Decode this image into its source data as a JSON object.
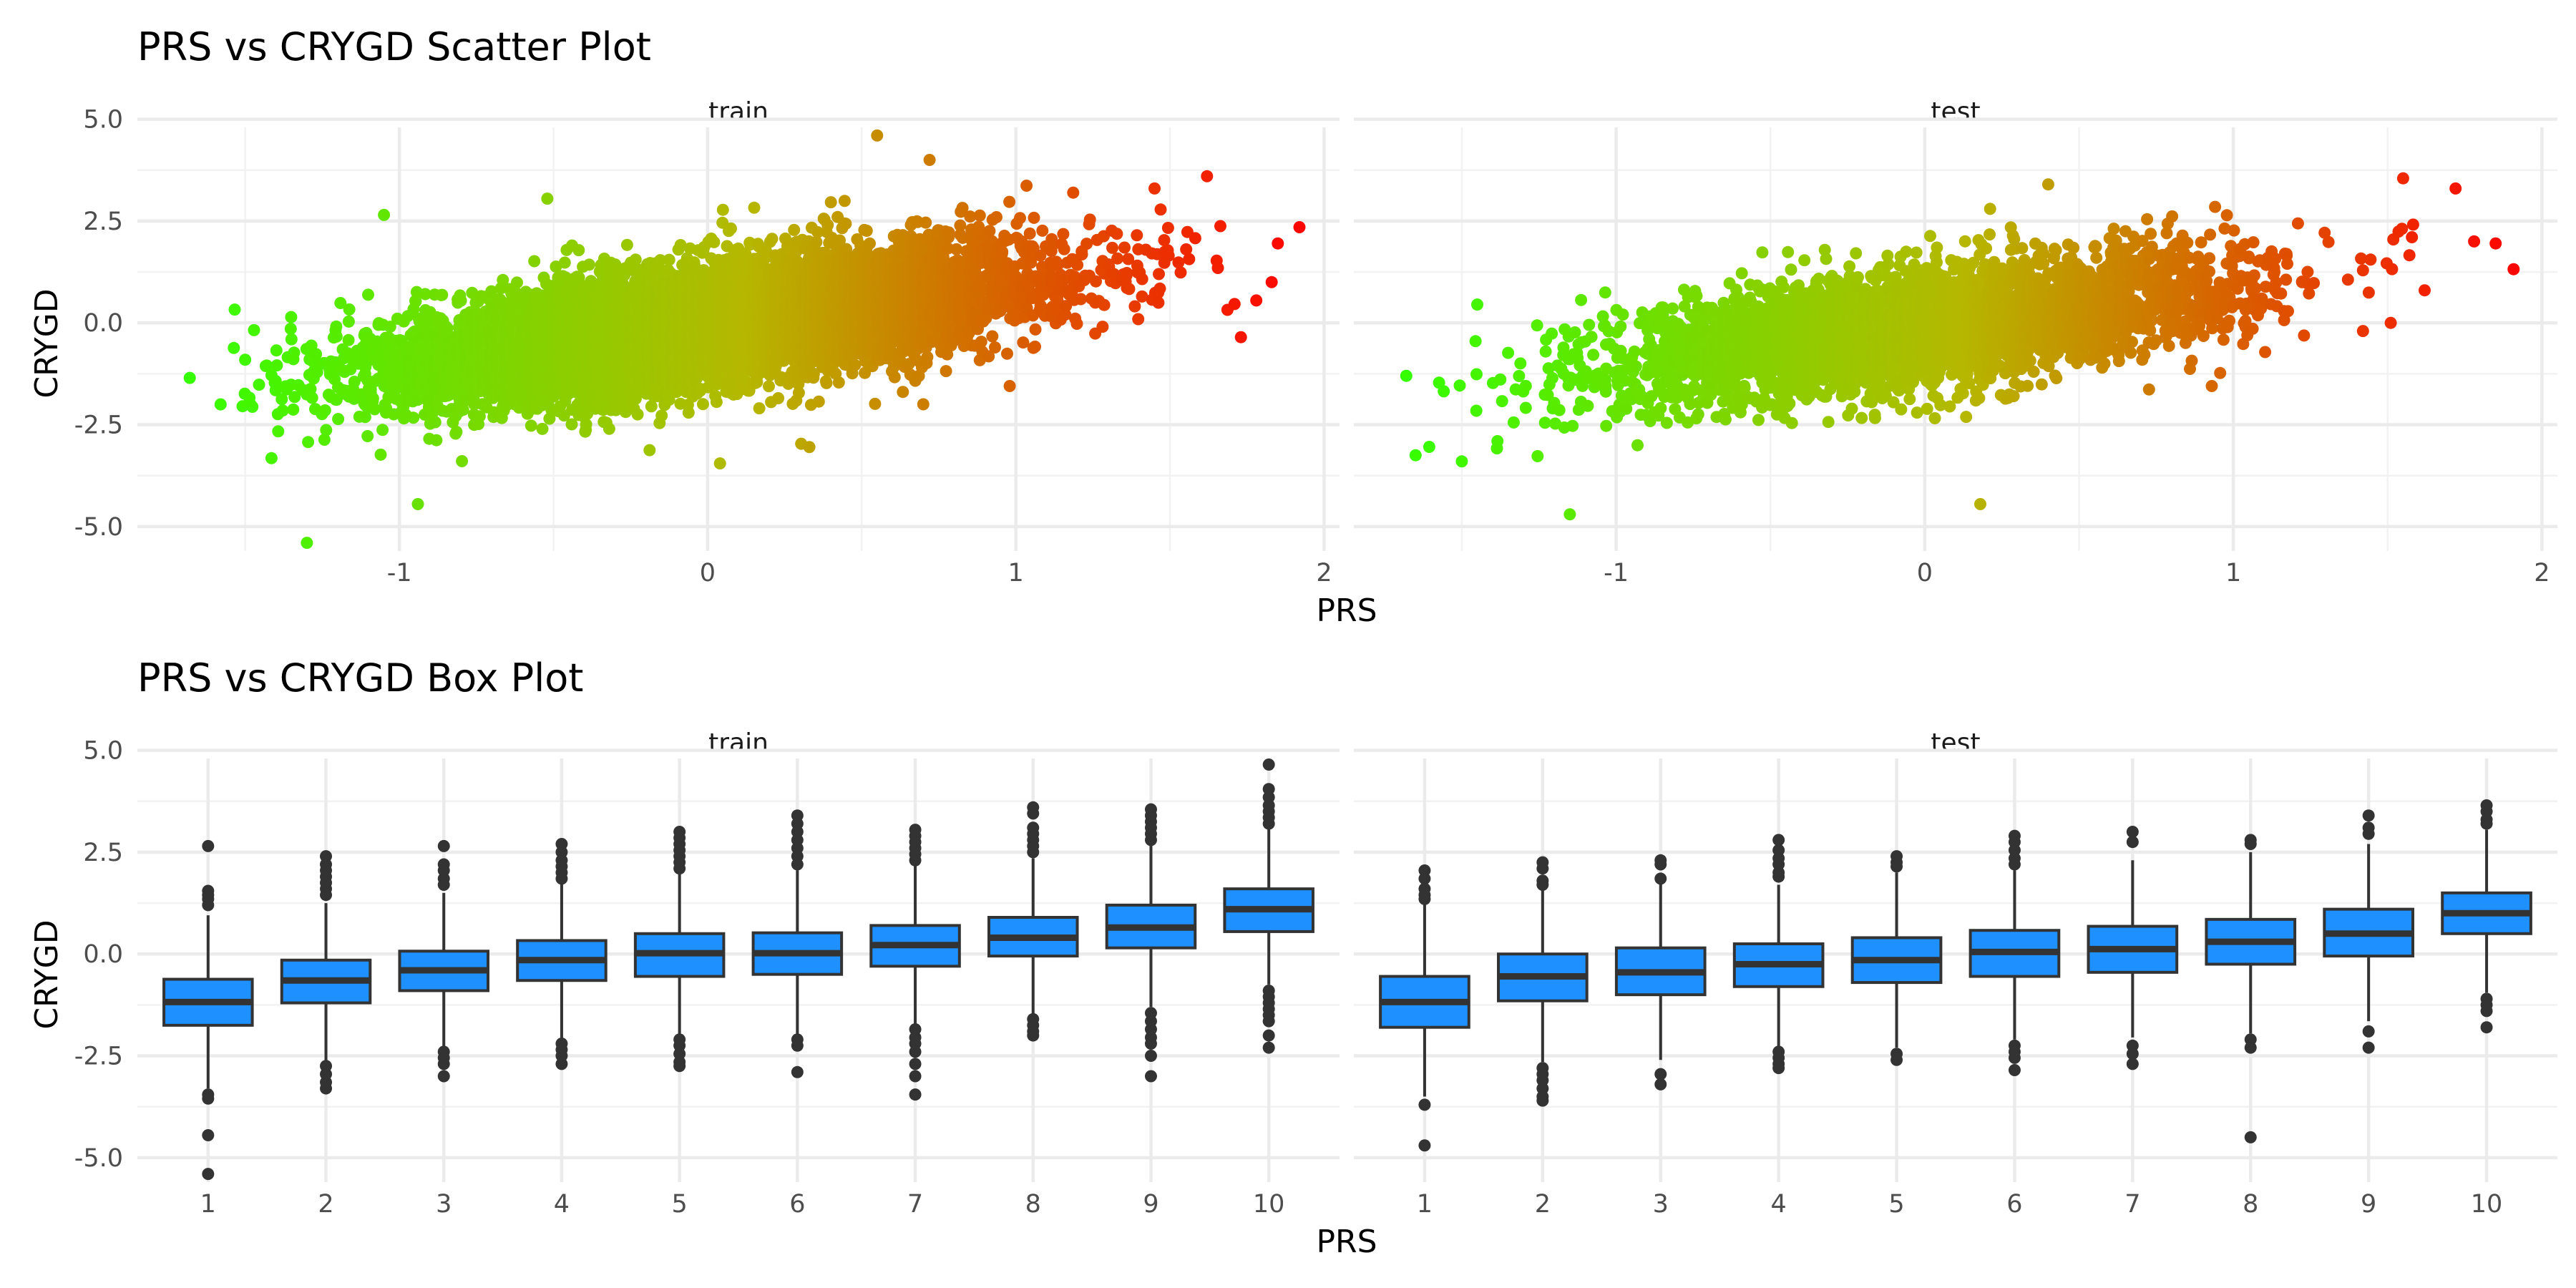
{
  "chart_data": [
    {
      "type": "scatter",
      "title": "PRS vs CRYGD Scatter Plot",
      "xlabel": "PRS",
      "ylabel": "CRYGD",
      "color_scale": {
        "low": "#33ff00",
        "mid": "#b5b800",
        "high": "#ff0000",
        "mapped_to": "PRS"
      },
      "panels": [
        {
          "name": "train",
          "xlim": [
            -1.85,
            2.05
          ],
          "ylim": [
            -5.6,
            4.8
          ],
          "x_ticks": [
            -1,
            0,
            1,
            2
          ],
          "x_tick_labels": [
            "-1",
            "0",
            "1",
            "2"
          ],
          "y_ticks": [
            -5,
            -2.5,
            0,
            2.5,
            5
          ],
          "y_tick_labels": [
            "-5.0",
            "-2.5",
            "0.0",
            "2.5",
            "5.0"
          ],
          "trend": {
            "slope": 1.02,
            "intercept": -0.05,
            "spread_sd": 0.72,
            "n_approx": 9000,
            "x_mean": 0.0,
            "x_sd": 0.5
          },
          "points": [
            {
              "x": -1.68,
              "y": -1.35
            },
            {
              "x": -1.3,
              "y": -5.4
            },
            {
              "x": -0.94,
              "y": -4.45
            },
            {
              "x": -1.05,
              "y": 2.65
            },
            {
              "x": 0.55,
              "y": 4.6
            },
            {
              "x": 0.72,
              "y": 4.0
            },
            {
              "x": 1.92,
              "y": 2.35
            },
            {
              "x": 1.83,
              "y": 1.0
            },
            {
              "x": 1.78,
              "y": 0.55
            },
            {
              "x": 1.73,
              "y": -0.35
            },
            {
              "x": 0.33,
              "y": -3.05
            },
            {
              "x": 0.04,
              "y": -3.45
            },
            {
              "x": 0.98,
              "y": -1.55
            },
            {
              "x": 1.62,
              "y": 3.6
            },
            {
              "x": 1.45,
              "y": 3.3
            },
            {
              "x": 1.85,
              "y": 1.95
            },
            {
              "x": -0.52,
              "y": 3.05
            },
            {
              "x": -1.58,
              "y": -2.0
            }
          ]
        },
        {
          "name": "test",
          "xlim": [
            -1.85,
            2.05
          ],
          "ylim": [
            -5.6,
            4.8
          ],
          "x_ticks": [
            -1,
            0,
            1,
            2
          ],
          "x_tick_labels": [
            "-1",
            "0",
            "1",
            "2"
          ],
          "y_ticks": [
            -5,
            -2.5,
            0,
            2.5,
            5
          ],
          "y_tick_labels": [
            "-5.0",
            "-2.5",
            "0.0",
            "2.5",
            "5.0"
          ],
          "trend": {
            "slope": 1.0,
            "intercept": -0.1,
            "spread_sd": 0.72,
            "n_approx": 4000,
            "x_mean": 0.0,
            "x_sd": 0.5
          },
          "points": [
            {
              "x": -1.68,
              "y": -1.3
            },
            {
              "x": -1.65,
              "y": -3.25
            },
            {
              "x": -1.15,
              "y": -4.7
            },
            {
              "x": 0.18,
              "y": -4.45
            },
            {
              "x": 1.78,
              "y": 2.0
            },
            {
              "x": 1.85,
              "y": 1.95
            },
            {
              "x": 1.72,
              "y": 3.3
            },
            {
              "x": 1.55,
              "y": 3.55
            },
            {
              "x": 1.62,
              "y": 0.8
            },
            {
              "x": 1.51,
              "y": 0.0
            },
            {
              "x": 1.42,
              "y": -0.2
            },
            {
              "x": 0.93,
              "y": -1.55
            },
            {
              "x": -1.5,
              "y": -3.4
            },
            {
              "x": -1.45,
              "y": 0.45
            },
            {
              "x": 0.4,
              "y": 3.4
            }
          ]
        }
      ]
    },
    {
      "type": "box",
      "title": "PRS vs CRYGD Box Plot",
      "xlabel": "PRS",
      "ylabel": "CRYGD",
      "fill": "#1e90ff",
      "categories": [
        "1",
        "2",
        "3",
        "4",
        "5",
        "6",
        "7",
        "8",
        "9",
        "10"
      ],
      "ylim": [
        -5.6,
        4.8
      ],
      "y_ticks": [
        -5,
        -2.5,
        0,
        2.5,
        5
      ],
      "y_tick_labels": [
        "-5.0",
        "-2.5",
        "0.0",
        "2.5",
        "5.0"
      ],
      "panels": [
        {
          "name": "train",
          "boxes": [
            {
              "q1": -1.75,
              "median": -1.18,
              "q3": -0.62,
              "lower": -3.3,
              "upper": 0.95,
              "outliers": [
                2.65,
                1.55,
                1.45,
                1.35,
                1.2,
                -3.45,
                -3.55,
                -4.45,
                -5.4
              ]
            },
            {
              "q1": -1.2,
              "median": -0.65,
              "q3": -0.15,
              "lower": -2.7,
              "upper": 1.25,
              "outliers": [
                2.4,
                2.2,
                2.05,
                1.9,
                1.75,
                1.6,
                1.45,
                -2.75,
                -2.95,
                -3.15,
                -3.3
              ]
            },
            {
              "q1": -0.9,
              "median": -0.4,
              "q3": 0.07,
              "lower": -2.3,
              "upper": 1.5,
              "outliers": [
                2.65,
                2.2,
                2.05,
                1.85,
                1.7,
                -2.4,
                -2.55,
                -2.7,
                -3.0
              ]
            },
            {
              "q1": -0.65,
              "median": -0.15,
              "q3": 0.33,
              "lower": -2.1,
              "upper": 1.75,
              "outliers": [
                2.7,
                2.5,
                2.3,
                2.15,
                2.0,
                1.85,
                -2.2,
                -2.35,
                -2.5,
                -2.7
              ]
            },
            {
              "q1": -0.55,
              "median": 0.02,
              "q3": 0.5,
              "lower": -2.0,
              "upper": 2.0,
              "outliers": [
                3.0,
                2.85,
                2.7,
                2.55,
                2.4,
                2.25,
                2.1,
                -2.1,
                -2.25,
                -2.45,
                -2.65,
                -2.75
              ]
            },
            {
              "q1": -0.5,
              "median": 0.02,
              "q3": 0.52,
              "lower": -2.0,
              "upper": 2.05,
              "outliers": [
                3.4,
                3.2,
                3.0,
                2.8,
                2.6,
                2.4,
                2.2,
                -2.1,
                -2.25,
                -2.9
              ]
            },
            {
              "q1": -0.3,
              "median": 0.22,
              "q3": 0.7,
              "lower": -1.75,
              "upper": 2.2,
              "outliers": [
                3.05,
                2.9,
                2.75,
                2.6,
                2.45,
                2.3,
                -1.85,
                -2.05,
                -2.2,
                -2.4,
                -2.7,
                -3.0,
                -3.45
              ]
            },
            {
              "q1": -0.05,
              "median": 0.4,
              "q3": 0.9,
              "lower": -1.5,
              "upper": 2.35,
              "outliers": [
                3.6,
                3.45,
                3.1,
                2.95,
                2.8,
                2.65,
                2.5,
                -1.6,
                -1.75,
                -1.9,
                -2.0
              ]
            },
            {
              "q1": 0.15,
              "median": 0.65,
              "q3": 1.2,
              "lower": -1.3,
              "upper": 2.7,
              "outliers": [
                3.55,
                3.4,
                3.25,
                3.1,
                2.95,
                2.8,
                -1.45,
                -1.65,
                -1.85,
                -2.05,
                -2.2,
                -2.5,
                -3.0
              ]
            },
            {
              "q1": 0.55,
              "median": 1.1,
              "q3": 1.6,
              "lower": -0.75,
              "upper": 3.1,
              "outliers": [
                4.65,
                4.05,
                3.85,
                3.65,
                3.5,
                3.35,
                3.2,
                -0.9,
                -1.05,
                -1.2,
                -1.35,
                -1.5,
                -1.65,
                -2.0,
                -2.3
              ]
            }
          ]
        },
        {
          "name": "test",
          "boxes": [
            {
              "q1": -1.8,
              "median": -1.18,
              "q3": -0.55,
              "lower": -3.5,
              "upper": 1.25,
              "outliers": [
                2.05,
                1.85,
                1.6,
                1.45,
                1.35,
                -3.7,
                -4.7
              ]
            },
            {
              "q1": -1.15,
              "median": -0.55,
              "q3": 0.0,
              "lower": -2.65,
              "upper": 1.6,
              "outliers": [
                2.25,
                2.1,
                1.8,
                1.7,
                -2.8,
                -2.95,
                -3.1,
                -3.3,
                -3.5,
                -3.6
              ]
            },
            {
              "q1": -1.0,
              "median": -0.45,
              "q3": 0.15,
              "lower": -2.6,
              "upper": 1.75,
              "outliers": [
                2.3,
                2.2,
                1.85,
                -2.95,
                -3.2
              ]
            },
            {
              "q1": -0.8,
              "median": -0.25,
              "q3": 0.25,
              "lower": -2.3,
              "upper": 1.7,
              "outliers": [
                2.8,
                2.55,
                2.35,
                2.2,
                2.0,
                1.9,
                -2.4,
                -2.55,
                -2.7,
                -2.8
              ]
            },
            {
              "q1": -0.7,
              "median": -0.15,
              "q3": 0.4,
              "lower": -2.3,
              "upper": 2.0,
              "outliers": [
                2.4,
                2.25,
                2.15,
                -2.45,
                -2.6
              ]
            },
            {
              "q1": -0.55,
              "median": 0.05,
              "q3": 0.58,
              "lower": -2.1,
              "upper": 2.05,
              "outliers": [
                2.9,
                2.75,
                2.55,
                2.35,
                2.2,
                -2.25,
                -2.4,
                -2.55,
                -2.85
              ]
            },
            {
              "q1": -0.45,
              "median": 0.12,
              "q3": 0.68,
              "lower": -2.05,
              "upper": 2.3,
              "outliers": [
                3.0,
                2.75,
                -2.25,
                -2.45,
                -2.7
              ]
            },
            {
              "q1": -0.25,
              "median": 0.3,
              "q3": 0.85,
              "lower": -1.95,
              "upper": 2.5,
              "outliers": [
                2.8,
                2.7,
                -2.1,
                -2.3,
                -4.5
              ]
            },
            {
              "q1": -0.05,
              "median": 0.5,
              "q3": 1.1,
              "lower": -1.65,
              "upper": 2.7,
              "outliers": [
                3.4,
                3.1,
                2.95,
                -1.9,
                -2.3
              ]
            },
            {
              "q1": 0.5,
              "median": 1.0,
              "q3": 1.5,
              "lower": -0.95,
              "upper": 3.05,
              "outliers": [
                3.65,
                3.5,
                3.3,
                3.2,
                -1.1,
                -1.25,
                -1.4,
                -1.8
              ]
            }
          ]
        }
      ]
    }
  ]
}
